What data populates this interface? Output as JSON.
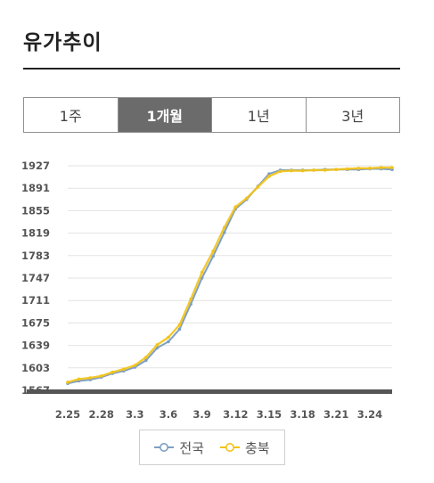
{
  "page_title": "유가추이",
  "tabs": [
    {
      "label": "1주",
      "active": false
    },
    {
      "label": "1개월",
      "active": true
    },
    {
      "label": "1년",
      "active": false
    },
    {
      "label": "3년",
      "active": false
    }
  ],
  "chart_data": {
    "type": "line",
    "x": [
      "2.25",
      "2.26",
      "2.27",
      "2.28",
      "3.1",
      "3.2",
      "3.3",
      "3.4",
      "3.5",
      "3.6",
      "3.7",
      "3.8",
      "3.9",
      "3.10",
      "3.11",
      "3.12",
      "3.13",
      "3.14",
      "3.15",
      "3.16",
      "3.17",
      "3.18",
      "3.19",
      "3.20",
      "3.21",
      "3.22",
      "3.23",
      "3.24",
      "3.25",
      "3.26"
    ],
    "x_tick_labels": [
      "2.25",
      "2.28",
      "3.3",
      "3.6",
      "3.9",
      "3.12",
      "3.15",
      "3.18",
      "3.21",
      "3.24"
    ],
    "y_ticks": [
      1567,
      1603,
      1639,
      1675,
      1711,
      1747,
      1783,
      1819,
      1855,
      1891,
      1927
    ],
    "ylim": [
      1567,
      1927
    ],
    "series": [
      {
        "name": "전국",
        "color": "#7f9fc3",
        "values": [
          1578,
          1582,
          1584,
          1588,
          1594,
          1598,
          1604,
          1615,
          1635,
          1645,
          1665,
          1705,
          1747,
          1782,
          1820,
          1858,
          1873,
          1894,
          1914,
          1920,
          1920,
          1920,
          1920,
          1921,
          1921,
          1921,
          1921,
          1922,
          1922,
          1921
        ]
      },
      {
        "name": "충북",
        "color": "#f2c318",
        "values": [
          1580,
          1585,
          1587,
          1590,
          1596,
          1601,
          1607,
          1620,
          1640,
          1652,
          1672,
          1713,
          1756,
          1790,
          1828,
          1861,
          1875,
          1893,
          1910,
          1918,
          1919,
          1919,
          1920,
          1920,
          1921,
          1922,
          1923,
          1923,
          1924,
          1924
        ]
      }
    ]
  }
}
